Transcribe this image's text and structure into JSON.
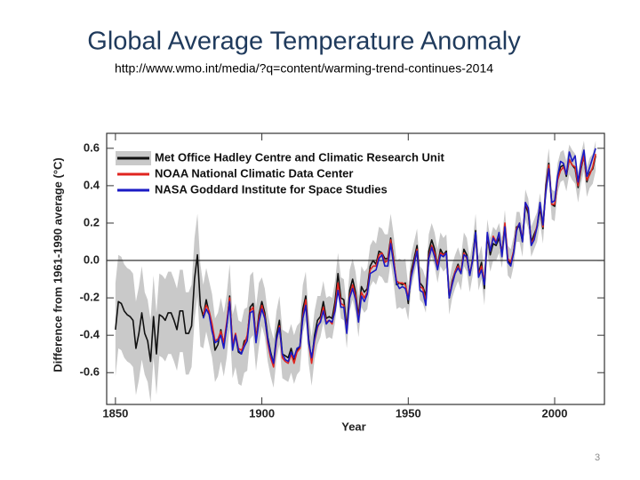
{
  "slide": {
    "title": "Global Average Temperature Anomaly",
    "source": "http://www.wmo.int/media/?q=content/warming-trend-continues-2014",
    "page_number": "3"
  },
  "chart_data": {
    "type": "line",
    "xlabel": "Year",
    "ylabel": "Difference from 1961-1990 average (°C)",
    "xlim": [
      1847,
      2017
    ],
    "ylim": [
      -0.77,
      0.68
    ],
    "xticks": [
      1850,
      1900,
      1950,
      2000
    ],
    "yticks": [
      -0.6,
      -0.4,
      -0.2,
      {
        "value": 0,
        "label": "0.0"
      },
      0.2,
      0.4,
      0.6
    ],
    "hlines": [
      0
    ],
    "legend": "upper left",
    "band_color": "#c9c9c9",
    "x": [
      1850,
      1851,
      1852,
      1853,
      1854,
      1855,
      1856,
      1857,
      1858,
      1859,
      1860,
      1861,
      1862,
      1863,
      1864,
      1865,
      1866,
      1867,
      1868,
      1869,
      1870,
      1871,
      1872,
      1873,
      1874,
      1875,
      1876,
      1877,
      1878,
      1879,
      1880,
      1881,
      1882,
      1883,
      1884,
      1885,
      1886,
      1887,
      1888,
      1889,
      1890,
      1891,
      1892,
      1893,
      1894,
      1895,
      1896,
      1897,
      1898,
      1899,
      1900,
      1901,
      1902,
      1903,
      1904,
      1905,
      1906,
      1907,
      1908,
      1909,
      1910,
      1911,
      1912,
      1913,
      1914,
      1915,
      1916,
      1917,
      1918,
      1919,
      1920,
      1921,
      1922,
      1923,
      1924,
      1925,
      1926,
      1927,
      1928,
      1929,
      1930,
      1931,
      1932,
      1933,
      1934,
      1935,
      1936,
      1937,
      1938,
      1939,
      1940,
      1941,
      1942,
      1943,
      1944,
      1945,
      1946,
      1947,
      1948,
      1949,
      1950,
      1951,
      1952,
      1953,
      1954,
      1955,
      1956,
      1957,
      1958,
      1959,
      1960,
      1961,
      1962,
      1963,
      1964,
      1965,
      1966,
      1967,
      1968,
      1969,
      1970,
      1971,
      1972,
      1973,
      1974,
      1975,
      1976,
      1977,
      1978,
      1979,
      1980,
      1981,
      1982,
      1983,
      1984,
      1985,
      1986,
      1987,
      1988,
      1989,
      1990,
      1991,
      1992,
      1993,
      1994,
      1995,
      1996,
      1997,
      1998,
      1999,
      2000,
      2001,
      2002,
      2003,
      2004,
      2005,
      2006,
      2007,
      2008,
      2009,
      2010,
      2011,
      2012,
      2013,
      2014
    ],
    "series": [
      {
        "name": "Met Office Hadley Centre and Climatic Research Unit",
        "color": "#111111",
        "values": [
          -0.37,
          -0.22,
          -0.23,
          -0.27,
          -0.29,
          -0.3,
          -0.32,
          -0.47,
          -0.39,
          -0.28,
          -0.39,
          -0.43,
          -0.54,
          -0.3,
          -0.5,
          -0.29,
          -0.3,
          -0.32,
          -0.28,
          -0.28,
          -0.32,
          -0.37,
          -0.27,
          -0.27,
          -0.39,
          -0.39,
          -0.35,
          -0.1,
          0.03,
          -0.24,
          -0.3,
          -0.21,
          -0.28,
          -0.35,
          -0.48,
          -0.45,
          -0.37,
          -0.45,
          -0.35,
          -0.19,
          -0.46,
          -0.4,
          -0.49,
          -0.5,
          -0.43,
          -0.42,
          -0.25,
          -0.23,
          -0.42,
          -0.29,
          -0.22,
          -0.28,
          -0.41,
          -0.49,
          -0.55,
          -0.4,
          -0.32,
          -0.5,
          -0.51,
          -0.52,
          -0.47,
          -0.53,
          -0.48,
          -0.46,
          -0.26,
          -0.19,
          -0.42,
          -0.54,
          -0.4,
          -0.32,
          -0.3,
          -0.22,
          -0.31,
          -0.3,
          -0.31,
          -0.22,
          -0.07,
          -0.2,
          -0.21,
          -0.36,
          -0.16,
          -0.1,
          -0.17,
          -0.3,
          -0.14,
          -0.17,
          -0.15,
          -0.03,
          0.0,
          -0.02,
          0.05,
          0.04,
          0.01,
          0.01,
          0.12,
          0.01,
          -0.13,
          -0.12,
          -0.13,
          -0.12,
          -0.23,
          -0.06,
          0.01,
          0.08,
          -0.12,
          -0.14,
          -0.19,
          0.05,
          0.11,
          0.06,
          -0.03,
          0.06,
          0.03,
          0.05,
          -0.2,
          -0.11,
          -0.06,
          -0.02,
          -0.07,
          0.06,
          0.03,
          -0.08,
          0.01,
          0.16,
          -0.07,
          -0.01,
          -0.15,
          0.13,
          0.03,
          0.09,
          0.08,
          0.12,
          0.04,
          0.19,
          0.0,
          -0.02,
          0.05,
          0.18,
          0.18,
          0.1,
          0.3,
          0.25,
          0.1,
          0.14,
          0.18,
          0.28,
          0.17,
          0.4,
          0.52,
          0.3,
          0.29,
          0.44,
          0.5,
          0.51,
          0.45,
          0.54,
          0.51,
          0.49,
          0.39,
          0.49,
          0.56,
          0.42,
          0.47,
          0.49,
          0.56
        ],
        "uncertainty": [
          0.25,
          0.25,
          0.25,
          0.25,
          0.25,
          0.25,
          0.25,
          0.25,
          0.25,
          0.25,
          0.22,
          0.22,
          0.22,
          0.22,
          0.22,
          0.22,
          0.22,
          0.22,
          0.22,
          0.22,
          0.22,
          0.22,
          0.22,
          0.22,
          0.22,
          0.22,
          0.22,
          0.22,
          0.22,
          0.22,
          0.17,
          0.17,
          0.17,
          0.17,
          0.17,
          0.17,
          0.17,
          0.17,
          0.17,
          0.17,
          0.17,
          0.17,
          0.17,
          0.17,
          0.17,
          0.17,
          0.17,
          0.17,
          0.17,
          0.17,
          0.13,
          0.13,
          0.13,
          0.13,
          0.13,
          0.13,
          0.13,
          0.13,
          0.13,
          0.13,
          0.13,
          0.13,
          0.13,
          0.13,
          0.13,
          0.13,
          0.13,
          0.13,
          0.13,
          0.13,
          0.11,
          0.11,
          0.11,
          0.11,
          0.11,
          0.11,
          0.11,
          0.11,
          0.11,
          0.11,
          0.11,
          0.11,
          0.11,
          0.11,
          0.11,
          0.11,
          0.11,
          0.11,
          0.11,
          0.11,
          0.13,
          0.13,
          0.13,
          0.13,
          0.13,
          0.13,
          0.13,
          0.13,
          0.13,
          0.13,
          0.09,
          0.09,
          0.09,
          0.09,
          0.09,
          0.09,
          0.09,
          0.09,
          0.09,
          0.09,
          0.09,
          0.09,
          0.09,
          0.09,
          0.09,
          0.09,
          0.09,
          0.09,
          0.09,
          0.09,
          0.09,
          0.09,
          0.09,
          0.09,
          0.09,
          0.09,
          0.09,
          0.09,
          0.09,
          0.09,
          0.08,
          0.08,
          0.08,
          0.08,
          0.08,
          0.08,
          0.08,
          0.08,
          0.08,
          0.08,
          0.08,
          0.08,
          0.08,
          0.08,
          0.08,
          0.08,
          0.08,
          0.08,
          0.08,
          0.08,
          0.08,
          0.08,
          0.08,
          0.08,
          0.08,
          0.08,
          0.08,
          0.08,
          0.08,
          0.08,
          0.08,
          0.08,
          0.08,
          0.08,
          0.08
        ]
      },
      {
        "name": "NOAA National Climatic Data Center",
        "color": "#e0241f",
        "values": [
          null,
          null,
          null,
          null,
          null,
          null,
          null,
          null,
          null,
          null,
          null,
          null,
          null,
          null,
          null,
          null,
          null,
          null,
          null,
          null,
          null,
          null,
          null,
          null,
          null,
          null,
          null,
          null,
          null,
          null,
          -0.29,
          -0.24,
          -0.27,
          -0.34,
          -0.43,
          -0.42,
          -0.38,
          -0.44,
          -0.33,
          -0.2,
          -0.45,
          -0.39,
          -0.47,
          -0.48,
          -0.45,
          -0.4,
          -0.27,
          -0.25,
          -0.42,
          -0.31,
          -0.24,
          -0.3,
          -0.44,
          -0.52,
          -0.57,
          -0.43,
          -0.35,
          -0.52,
          -0.54,
          -0.55,
          -0.5,
          -0.55,
          -0.49,
          -0.47,
          -0.3,
          -0.21,
          -0.44,
          -0.55,
          -0.43,
          -0.36,
          -0.32,
          -0.25,
          -0.33,
          -0.32,
          -0.34,
          -0.25,
          -0.12,
          -0.23,
          -0.24,
          -0.38,
          -0.19,
          -0.13,
          -0.19,
          -0.32,
          -0.17,
          -0.2,
          -0.17,
          -0.05,
          -0.03,
          -0.03,
          0.03,
          0.04,
          -0.01,
          0.0,
          0.11,
          0.0,
          -0.11,
          -0.12,
          -0.12,
          -0.13,
          -0.2,
          -0.08,
          -0.01,
          0.06,
          -0.14,
          -0.15,
          -0.22,
          0.02,
          0.08,
          0.04,
          -0.03,
          0.04,
          0.03,
          0.04,
          -0.19,
          -0.12,
          -0.06,
          -0.03,
          -0.06,
          0.04,
          0.01,
          -0.07,
          0.0,
          0.14,
          -0.08,
          -0.03,
          -0.12,
          0.14,
          0.05,
          0.13,
          0.1,
          0.14,
          0.03,
          0.2,
          0.01,
          -0.01,
          0.05,
          0.17,
          0.2,
          0.11,
          0.31,
          0.27,
          0.09,
          0.12,
          0.19,
          0.3,
          0.18,
          0.38,
          0.51,
          0.3,
          0.3,
          0.43,
          0.48,
          0.5,
          0.46,
          0.54,
          0.51,
          0.5,
          0.4,
          0.5,
          0.56,
          0.43,
          0.46,
          0.5,
          0.57
        ]
      },
      {
        "name": "NASA Goddard Institute for Space Studies",
        "color": "#1a1ac4",
        "values": [
          null,
          null,
          null,
          null,
          null,
          null,
          null,
          null,
          null,
          null,
          null,
          null,
          null,
          null,
          null,
          null,
          null,
          null,
          null,
          null,
          null,
          null,
          null,
          null,
          null,
          null,
          null,
          null,
          null,
          null,
          -0.31,
          -0.26,
          -0.29,
          -0.38,
          -0.44,
          -0.43,
          -0.4,
          -0.47,
          -0.35,
          -0.22,
          -0.48,
          -0.4,
          -0.48,
          -0.5,
          -0.46,
          -0.43,
          -0.28,
          -0.27,
          -0.44,
          -0.33,
          -0.26,
          -0.31,
          -0.42,
          -0.5,
          -0.55,
          -0.42,
          -0.36,
          -0.5,
          -0.53,
          -0.54,
          -0.49,
          -0.52,
          -0.47,
          -0.46,
          -0.31,
          -0.24,
          -0.44,
          -0.52,
          -0.42,
          -0.35,
          -0.33,
          -0.27,
          -0.34,
          -0.32,
          -0.33,
          -0.27,
          -0.16,
          -0.25,
          -0.25,
          -0.39,
          -0.2,
          -0.15,
          -0.21,
          -0.33,
          -0.19,
          -0.22,
          -0.18,
          -0.07,
          -0.06,
          -0.05,
          0.01,
          0.03,
          -0.03,
          -0.03,
          0.09,
          -0.02,
          -0.12,
          -0.15,
          -0.14,
          -0.15,
          -0.21,
          -0.09,
          -0.02,
          0.05,
          -0.16,
          -0.17,
          -0.24,
          0.01,
          0.07,
          0.02,
          -0.05,
          0.03,
          0.02,
          0.04,
          -0.2,
          -0.13,
          -0.07,
          -0.04,
          -0.07,
          0.03,
          0.02,
          -0.08,
          0.0,
          0.15,
          -0.09,
          -0.05,
          -0.13,
          0.15,
          0.05,
          0.12,
          0.09,
          0.15,
          0.02,
          0.18,
          -0.01,
          -0.03,
          0.04,
          0.16,
          0.2,
          0.1,
          0.31,
          0.28,
          0.08,
          0.11,
          0.18,
          0.31,
          0.19,
          0.37,
          0.49,
          0.31,
          0.32,
          0.45,
          0.53,
          0.52,
          0.46,
          0.58,
          0.53,
          0.56,
          0.42,
          0.52,
          0.59,
          0.45,
          0.5,
          0.55,
          0.6
        ]
      }
    ]
  }
}
